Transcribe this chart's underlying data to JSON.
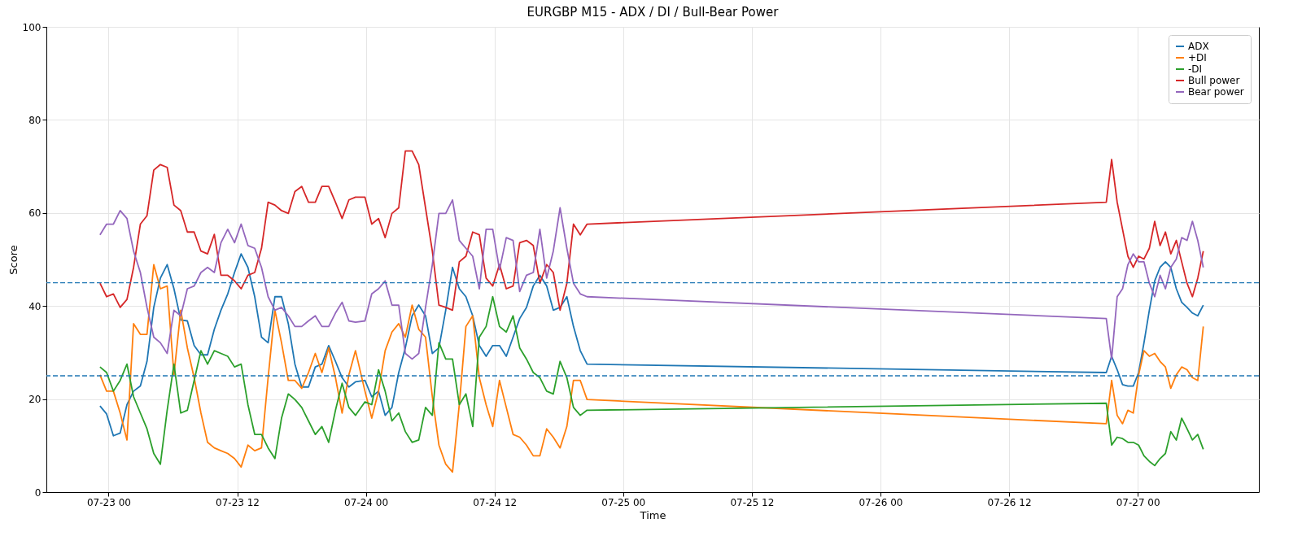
{
  "chart_data": {
    "type": "line",
    "title": "EURGBP M15 - ADX / DI / Bull-Bear Power",
    "xlabel": "Time",
    "ylabel": "Score",
    "x": [
      "--07-22T23:12",
      "--07-22T23:49",
      "--07-23T00:27",
      "--07-23T01:05",
      "--07-23T01:43",
      "--07-23T02:20",
      "--07-23T02:58",
      "--07-23T03:35",
      "--07-23T04:13",
      "--07-23T04:50",
      "--07-23T05:28",
      "--07-23T06:06",
      "--07-23T06:44",
      "--07-23T07:21",
      "--07-23T07:59",
      "--07-23T08:37",
      "--07-23T09:14",
      "--07-23T09:52",
      "--07-23T10:29",
      "--07-23T11:07",
      "--07-23T11:45",
      "--07-23T12:22",
      "--07-23T13:00",
      "--07-23T13:38",
      "--07-23T14:16",
      "--07-23T14:53",
      "--07-23T15:31",
      "--07-23T16:08",
      "--07-23T16:46",
      "--07-23T17:23",
      "--07-23T18:01",
      "--07-23T18:39",
      "--07-23T19:17",
      "--07-23T19:54",
      "--07-23T20:32",
      "--07-23T21:10",
      "--07-23T21:47",
      "--07-23T22:25",
      "--07-23T23:02",
      "--07-23T23:55",
      "--07-24T00:33",
      "--07-24T01:11",
      "--07-24T01:48",
      "--07-24T02:26",
      "--07-24T03:04",
      "--07-24T03:41",
      "--07-24T04:19",
      "--07-24T04:56",
      "--07-24T05:34",
      "--07-24T06:12",
      "--07-24T06:49",
      "--07-24T07:27",
      "--07-24T08:05",
      "--07-24T08:43",
      "--07-24T09:20",
      "--07-24T09:58",
      "--07-24T10:35",
      "--07-24T11:13",
      "--07-24T11:50",
      "--07-24T12:28",
      "--07-24T13:06",
      "--07-24T13:44",
      "--07-24T14:21",
      "--07-24T14:59",
      "--07-24T15:37",
      "--07-24T16:14",
      "--07-24T16:52",
      "--07-24T17:29",
      "--07-24T18:07",
      "--07-24T18:45",
      "--07-24T19:22",
      "--07-24T20:00",
      "--07-24T20:38",
      "--07-26T21:04",
      "--07-26T21:34",
      "--07-26T22:05",
      "--07-26T22:35",
      "--07-26T23:05",
      "--07-26T23:35",
      "--07-27T00:05",
      "--07-27T00:35",
      "--07-27T01:05",
      "--07-27T01:35",
      "--07-27T02:05",
      "--07-27T02:35",
      "--07-27T03:05",
      "--07-27T03:36",
      "--07-27T04:06",
      "--07-27T04:36",
      "--07-27T05:06",
      "--07-27T05:36",
      "--07-27T06:07"
    ],
    "series": [
      {
        "name": "ADX",
        "color": "#1f77b4",
        "values": [
          18.5,
          16.8,
          12.1,
          12.7,
          18.8,
          21.7,
          22.8,
          28.1,
          39.7,
          46.0,
          48.9,
          43.7,
          37.0,
          36.8,
          31.5,
          29.5,
          29.5,
          35.0,
          39.1,
          42.6,
          47.2,
          51.2,
          48.3,
          42.0,
          33.3,
          32.1,
          42.0,
          42.0,
          36.2,
          27.5,
          22.6,
          22.6,
          26.9,
          27.5,
          31.5,
          28.1,
          24.6,
          22.6,
          23.7,
          24.0,
          20.5,
          21.7,
          16.5,
          18.2,
          25.7,
          31.0,
          37.9,
          40.2,
          37.9,
          29.8,
          31.0,
          39.1,
          48.3,
          43.7,
          42.0,
          37.9,
          31.5,
          29.2,
          31.5,
          31.5,
          29.2,
          33.3,
          37.3,
          39.7,
          44.3,
          46.6,
          44.3,
          39.1,
          39.7,
          42.0,
          35.6,
          30.4,
          27.5,
          25.7,
          29.2,
          26.3,
          23.1,
          22.8,
          22.8,
          25.7,
          32.1,
          39.1,
          45.4,
          48.3,
          49.5,
          48.3,
          43.7,
          40.8,
          39.7,
          38.5,
          37.9,
          40.2
        ]
      },
      {
        "name": "+DI",
        "color": "#ff7f0e",
        "values": [
          25.2,
          21.7,
          21.7,
          17.0,
          11.2,
          36.2,
          33.9,
          33.9,
          48.9,
          43.7,
          44.3,
          25.2,
          39.1,
          31.0,
          24.6,
          17.0,
          10.7,
          9.5,
          8.9,
          8.3,
          7.2,
          5.4,
          10.1,
          8.9,
          9.5,
          24.6,
          39.1,
          32.1,
          24.0,
          24.0,
          22.3,
          25.7,
          29.8,
          25.7,
          31.0,
          24.6,
          17.0,
          25.2,
          30.4,
          21.7,
          15.9,
          21.7,
          30.4,
          34.4,
          36.2,
          33.3,
          40.2,
          35.0,
          33.3,
          20.5,
          10.1,
          6.0,
          4.3,
          18.8,
          35.6,
          37.9,
          24.6,
          18.8,
          14.1,
          24.0,
          18.2,
          12.4,
          11.8,
          10.1,
          7.8,
          7.8,
          13.6,
          11.8,
          9.5,
          14.1,
          24.0,
          24.0,
          19.9,
          14.7,
          24.0,
          16.5,
          14.7,
          17.6,
          17.0,
          25.2,
          30.4,
          29.2,
          29.8,
          28.1,
          26.9,
          22.3,
          25.2,
          26.9,
          26.3,
          24.6,
          24.0,
          35.6
        ]
      },
      {
        "name": "-DI",
        "color": "#2ca02c",
        "values": [
          26.9,
          25.7,
          21.7,
          24.0,
          27.5,
          20.5,
          17.0,
          13.6,
          8.3,
          6.0,
          17.6,
          27.5,
          17.0,
          17.6,
          24.0,
          30.4,
          27.5,
          30.4,
          29.8,
          29.2,
          26.9,
          27.5,
          18.8,
          12.4,
          12.4,
          9.5,
          7.2,
          15.9,
          21.1,
          19.9,
          18.2,
          15.3,
          12.4,
          14.1,
          10.7,
          17.6,
          23.4,
          18.2,
          16.5,
          19.4,
          18.8,
          26.3,
          21.7,
          15.3,
          17.0,
          13.0,
          10.7,
          11.2,
          18.2,
          16.5,
          32.1,
          28.6,
          28.6,
          18.8,
          21.1,
          14.1,
          33.3,
          35.6,
          42.0,
          35.6,
          34.4,
          37.9,
          31.0,
          28.6,
          25.7,
          24.6,
          21.7,
          21.1,
          28.1,
          24.6,
          18.2,
          16.5,
          17.6,
          19.1,
          10.1,
          11.8,
          11.5,
          10.7,
          10.7,
          10.1,
          7.8,
          6.6,
          5.7,
          7.2,
          8.3,
          13.0,
          11.2,
          15.9,
          13.6,
          11.2,
          12.4,
          9.2
        ]
      },
      {
        "name": "Bull power",
        "color": "#d62728",
        "values": [
          44.9,
          42.0,
          42.6,
          39.7,
          41.4,
          48.3,
          57.6,
          59.4,
          69.2,
          70.4,
          69.8,
          61.7,
          60.5,
          55.9,
          55.9,
          51.8,
          51.2,
          55.4,
          46.6,
          46.6,
          45.4,
          43.7,
          46.6,
          47.2,
          52.4,
          62.3,
          61.7,
          60.5,
          59.9,
          64.6,
          65.7,
          62.3,
          62.3,
          65.7,
          65.7,
          62.3,
          58.8,
          62.8,
          63.4,
          63.4,
          57.6,
          58.8,
          54.7,
          59.9,
          61.1,
          73.3,
          73.3,
          70.4,
          61.1,
          51.8,
          40.2,
          39.7,
          39.1,
          49.5,
          50.7,
          55.9,
          55.3,
          46.0,
          44.3,
          48.9,
          43.7,
          44.3,
          53.6,
          54.1,
          53.0,
          44.9,
          48.9,
          47.2,
          39.1,
          44.9,
          57.6,
          55.3,
          57.6,
          62.3,
          71.5,
          62.3,
          56.5,
          50.7,
          48.3,
          50.7,
          50.1,
          52.4,
          58.2,
          53.0,
          55.9,
          51.2,
          54.1,
          49.5,
          44.9,
          42.0,
          46.0,
          51.8
        ]
      },
      {
        "name": "Bear power",
        "color": "#9467bd",
        "values": [
          55.3,
          57.6,
          57.6,
          60.5,
          58.8,
          51.8,
          47.2,
          39.7,
          33.3,
          32.1,
          29.8,
          39.1,
          37.9,
          43.7,
          44.3,
          47.2,
          48.3,
          47.2,
          53.6,
          56.5,
          53.6,
          57.6,
          53.0,
          52.4,
          48.3,
          42.0,
          39.1,
          39.7,
          37.9,
          35.6,
          35.6,
          36.8,
          37.9,
          35.6,
          35.6,
          38.5,
          40.8,
          36.8,
          36.5,
          36.8,
          42.6,
          43.7,
          45.4,
          40.2,
          40.2,
          29.8,
          28.6,
          29.8,
          39.7,
          48.9,
          59.9,
          59.9,
          62.8,
          54.1,
          52.4,
          50.7,
          43.7,
          56.5,
          56.5,
          47.8,
          54.7,
          54.1,
          43.1,
          46.6,
          47.2,
          56.5,
          46.0,
          51.8,
          61.1,
          52.4,
          44.9,
          42.6,
          42.0,
          37.3,
          28.6,
          42.0,
          43.7,
          48.9,
          51.2,
          49.5,
          49.5,
          44.9,
          42.0,
          46.6,
          43.7,
          48.3,
          50.1,
          54.7,
          54.1,
          58.2,
          54.1,
          48.3
        ]
      }
    ],
    "xlim": [
      "--07-22T18:12",
      "--07-27T11:18"
    ],
    "xticks": [
      {
        "value": "--07-23T00:00",
        "label": "07-23 00"
      },
      {
        "value": "--07-23T12:00",
        "label": "07-23 12"
      },
      {
        "value": "--07-24T00:00",
        "label": "07-24 00"
      },
      {
        "value": "--07-24T12:00",
        "label": "07-24 12"
      },
      {
        "value": "--07-25T00:00",
        "label": "07-25 00"
      },
      {
        "value": "--07-25T12:00",
        "label": "07-25 12"
      },
      {
        "value": "--07-26T00:00",
        "label": "07-26 00"
      },
      {
        "value": "--07-26T12:00",
        "label": "07-26 12"
      },
      {
        "value": "--07-27T00:00",
        "label": "07-27 00"
      }
    ],
    "ylim": [
      0,
      100
    ],
    "yticks": [
      0,
      20,
      40,
      60,
      80,
      100
    ],
    "ref_lines": [
      {
        "axis": "y",
        "value": 45,
        "color": "#1f77b4",
        "line_style": "dashed"
      },
      {
        "axis": "y",
        "value": 25,
        "color": "#1f77b4",
        "line_style": "dashed"
      }
    ],
    "grid": true,
    "legend": "top right",
    "marker": "none",
    "line_style": "solid"
  }
}
